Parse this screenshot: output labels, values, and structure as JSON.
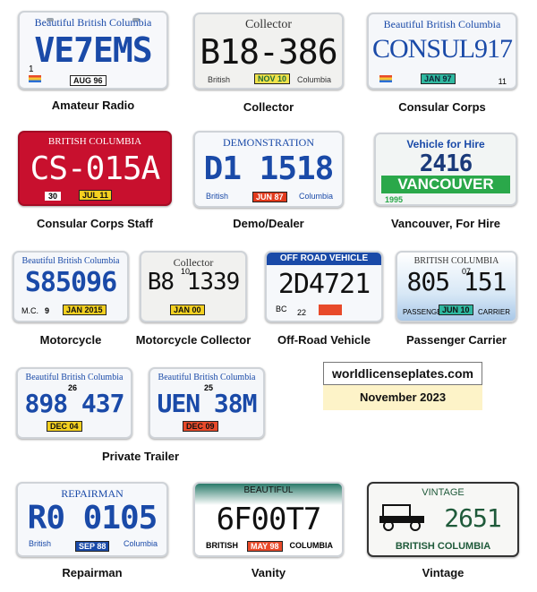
{
  "plates": [
    {
      "caption": "Amateur Radio",
      "top": "Beautiful British Columbia",
      "number": "VE7EMS",
      "sticker": "AUG 96",
      "corner": "1"
    },
    {
      "caption": "Collector",
      "top": "Collector",
      "number": "B18-386",
      "sticker": "NOV 10",
      "left": "British",
      "right": "Columbia"
    },
    {
      "caption": "Consular Corps",
      "top": "Beautiful British Columbia",
      "number": "CONSUL917",
      "sticker": "JAN 97",
      "corner": "11"
    },
    {
      "caption": "Consular Corps Staff",
      "top": "BRITISH COLUMBIA",
      "number": "CS-015A",
      "sticker": "JUL 11",
      "corner": "30"
    },
    {
      "caption": "Demo/Dealer",
      "top": "DEMONSTRATION",
      "number": "D1 1518",
      "sticker": "JUN 87",
      "left": "British",
      "right": "Columbia"
    },
    {
      "caption": "Vancouver, For Hire",
      "top": "Vehicle for Hire",
      "number": "2416",
      "band": "VANCOUVER",
      "sticker": "1995"
    },
    {
      "caption": "Motorcycle",
      "top": "Beautiful British Columbia",
      "number": "S85096",
      "sticker": "JAN 2015",
      "left": "M.C.",
      "corner": "9"
    },
    {
      "caption": "Motorcycle Collector",
      "top": "Collector",
      "number": "B8 1339",
      "sticker": "JAN 00",
      "corner": "10"
    },
    {
      "caption": "Off-Road Vehicle",
      "top": "OFF ROAD VEHICLE",
      "number": "2D4721",
      "left": "BC",
      "corner": "22"
    },
    {
      "caption": "Passenger Carrier",
      "top": "BRITISH COLUMBIA",
      "number": "805 151",
      "sticker": "JUN 10",
      "left": "PASSENGER",
      "right": "CARRIER",
      "corner": "07"
    },
    {
      "caption": "",
      "top": "Beautiful British Columbia",
      "number": "898 437",
      "sticker": "DEC 04",
      "corner": "26"
    },
    {
      "caption": "",
      "top": "Beautiful British Columbia",
      "number": "UEN 38M",
      "sticker": "DEC 09",
      "corner": "25"
    },
    {
      "caption": "Repairman",
      "top": "REPAIRMAN",
      "number": "R0 0105",
      "sticker": "SEP 88",
      "left": "British",
      "right": "Columbia"
    },
    {
      "caption": "Vanity",
      "top": "BEAUTIFUL",
      "number": "6F00T7",
      "sticker": "MAY 98",
      "left": "BRITISH",
      "right": "COLUMBIA"
    },
    {
      "caption": "Vintage",
      "top": "VINTAGE",
      "number": "2651",
      "bottom": "BRITISH COLUMBIA"
    }
  ],
  "private_trailer_caption": "Private Trailer",
  "credit": {
    "site": "worldlicenseplates.com",
    "date": "November 2023"
  },
  "colors": {
    "blue": "#1a4aa8",
    "red": "#c8102e",
    "green": "#1f6b3a",
    "yellow": "#f3d020"
  }
}
